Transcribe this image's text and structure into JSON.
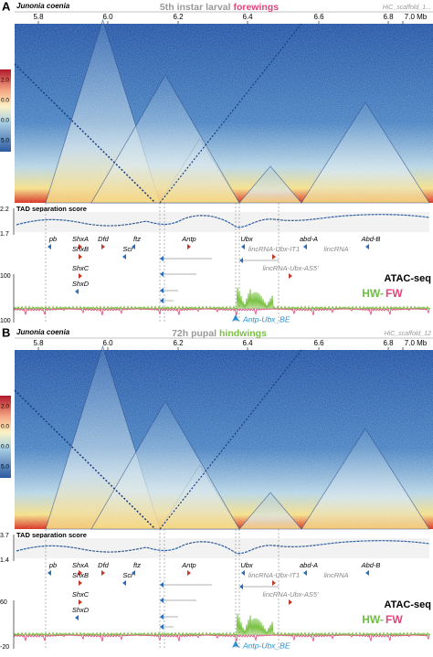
{
  "panels": [
    {
      "label": "A",
      "species": "Junonia coenia",
      "title_prefix": "5th instar larval",
      "title_suffix": "forewings",
      "scaffold": "HiC_scaffold_1...",
      "xticks": [
        "5.8",
        "6.0",
        "6.2",
        "6.4",
        "6.6",
        "6.8",
        "7.0 Mb"
      ],
      "colorbar": [
        "2.0",
        "0.0",
        "0.0",
        "5.0"
      ],
      "tad_label": "TAD separation score",
      "tad_ticks": [
        "2.2",
        "1.7"
      ],
      "genes": [
        "pb",
        "ShxA",
        "Dfd",
        "ftz",
        "Antp",
        "Ubx",
        "abd-A",
        "Abd-B",
        "ShxB",
        "Scr",
        "lincRNA-Ubx-IT1",
        "lincRNA",
        "ShxC",
        "lincRNA-Ubx-AS5'",
        "ShxD"
      ],
      "atac_label": "ATAC-seq",
      "hw": "HW-",
      "fw": "FW",
      "atac_ticks": [
        "100",
        "100"
      ],
      "enhancer": "Antp-Ubx_BE"
    },
    {
      "label": "B",
      "species": "Junonia coenia",
      "title_prefix": "72h pupal",
      "title_suffix": "hindwings",
      "scaffold": "HiC_scaffold_12",
      "xticks": [
        "5.8",
        "6.0",
        "6.2",
        "6.4",
        "6.6",
        "6.8",
        "7.0 Mb"
      ],
      "colorbar": [
        "2.0",
        "0.0",
        "0.0",
        "5.0"
      ],
      "tad_label": "TAD separation score",
      "tad_ticks": [
        "3.7",
        "1.4"
      ],
      "genes": [
        "pb",
        "ShxA",
        "Dfd",
        "ftz",
        "Antp",
        "Ubx",
        "abd-A",
        "Abd-B",
        "ShxB",
        "Scr",
        "lincRNA-Ubx-IT1",
        "lincRNA",
        "ShxC",
        "lincRNA-Ubx-AS5'",
        "ShxD"
      ],
      "atac_label": "ATAC-seq",
      "hw": "HW-",
      "fw": "FW",
      "atac_ticks": [
        "60",
        "-20"
      ],
      "enhancer": "Antp-Ubx_BE"
    }
  ]
}
